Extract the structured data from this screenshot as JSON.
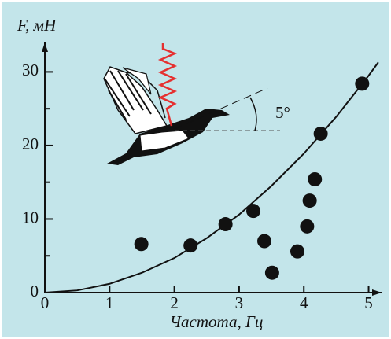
{
  "chart_data": {
    "type": "scatter",
    "y_label": "F, мН",
    "x_label": "Частота, Гц",
    "annotation": "5°",
    "x": [
      1.49,
      2.25,
      2.79,
      3.22,
      3.39,
      3.51,
      3.9,
      4.05,
      4.09,
      4.17,
      4.26,
      4.9
    ],
    "values": [
      6.6,
      6.4,
      9.3,
      11.1,
      7.0,
      2.7,
      5.6,
      9.0,
      12.5,
      15.4,
      21.6,
      28.4
    ],
    "color": "#111111",
    "fit": {
      "x": [
        0,
        0.5,
        1,
        1.5,
        2,
        2.5,
        3,
        3.5,
        4,
        4.5,
        5,
        5.15
      ],
      "values": [
        0,
        0.3,
        1.2,
        2.7,
        4.7,
        7.4,
        10.6,
        14.5,
        18.9,
        23.9,
        29.5,
        31.3
      ],
      "color": "#111111"
    },
    "xlim": [
      0,
      5.2
    ],
    "ylim": [
      0,
      34
    ],
    "xticks": [
      0,
      1,
      2,
      3,
      4,
      5
    ],
    "yticks": [
      0,
      10,
      20,
      30
    ],
    "yminorticks": [
      5,
      15,
      25
    ],
    "background": "#c3e5ea"
  }
}
